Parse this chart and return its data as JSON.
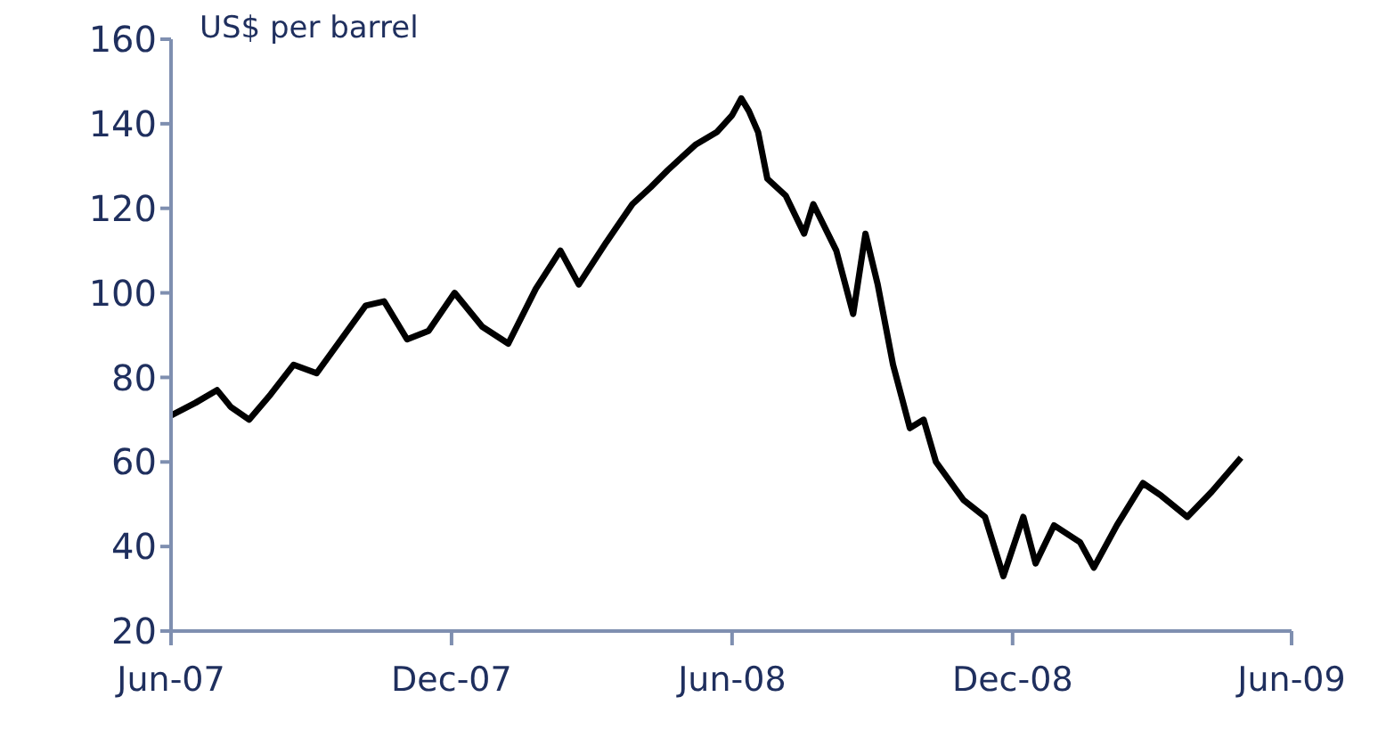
{
  "chart_data": {
    "type": "line",
    "ylabel": "US$ per barrel",
    "x": [
      "2007-06-01",
      "2007-06-17",
      "2007-07-01",
      "2007-07-10",
      "2007-07-22",
      "2007-08-05",
      "2007-08-20",
      "2007-09-04",
      "2007-09-18",
      "2007-10-06",
      "2007-10-18",
      "2007-11-02",
      "2007-11-16",
      "2007-12-03",
      "2007-12-21",
      "2008-01-07",
      "2008-01-25",
      "2008-02-10",
      "2008-02-22",
      "2008-03-11",
      "2008-03-28",
      "2008-04-09",
      "2008-04-20",
      "2008-05-08",
      "2008-05-22",
      "2008-06-01",
      "2008-06-07",
      "2008-06-12",
      "2008-06-18",
      "2008-06-24",
      "2008-07-06",
      "2008-07-18",
      "2008-07-24",
      "2008-08-08",
      "2008-08-19",
      "2008-08-27",
      "2008-09-04",
      "2008-09-14",
      "2008-09-25",
      "2008-10-04",
      "2008-10-12",
      "2008-10-30",
      "2008-11-13",
      "2008-11-25",
      "2008-12-08",
      "2008-12-16",
      "2008-12-28",
      "2009-01-14",
      "2009-01-23",
      "2009-02-07",
      "2009-02-24",
      "2009-03-08",
      "2009-03-25",
      "2009-04-10",
      "2009-04-29"
    ],
    "series": [
      {
        "color": "#000000",
        "values": [
          71,
          74,
          77,
          73,
          70,
          76,
          83,
          81,
          88,
          97,
          98,
          89,
          91,
          100,
          92,
          88,
          101,
          110,
          102,
          112,
          121,
          125,
          129,
          135,
          138,
          142,
          146,
          143,
          138,
          127,
          123,
          114,
          121,
          110,
          95,
          114,
          102,
          83,
          68,
          70,
          60,
          51,
          47,
          33,
          47,
          36,
          45,
          41,
          35,
          45,
          55,
          52,
          47,
          53,
          61
        ]
      }
    ],
    "xlim": [
      "2007-06-01",
      "2009-06-01"
    ],
    "xticks": [
      {
        "value": "2007-06-01",
        "label": "Jun-07"
      },
      {
        "value": "2007-12-01",
        "label": "Dec-07"
      },
      {
        "value": "2008-06-01",
        "label": "Jun-08"
      },
      {
        "value": "2008-12-01",
        "label": "Dec-08"
      },
      {
        "value": "2009-06-01",
        "label": "Jun-09"
      }
    ],
    "ylim": [
      20,
      160
    ],
    "yticks": [
      20,
      40,
      60,
      80,
      100,
      120,
      140,
      160
    ],
    "grid": false,
    "line_style": "solid",
    "marker": "none"
  }
}
